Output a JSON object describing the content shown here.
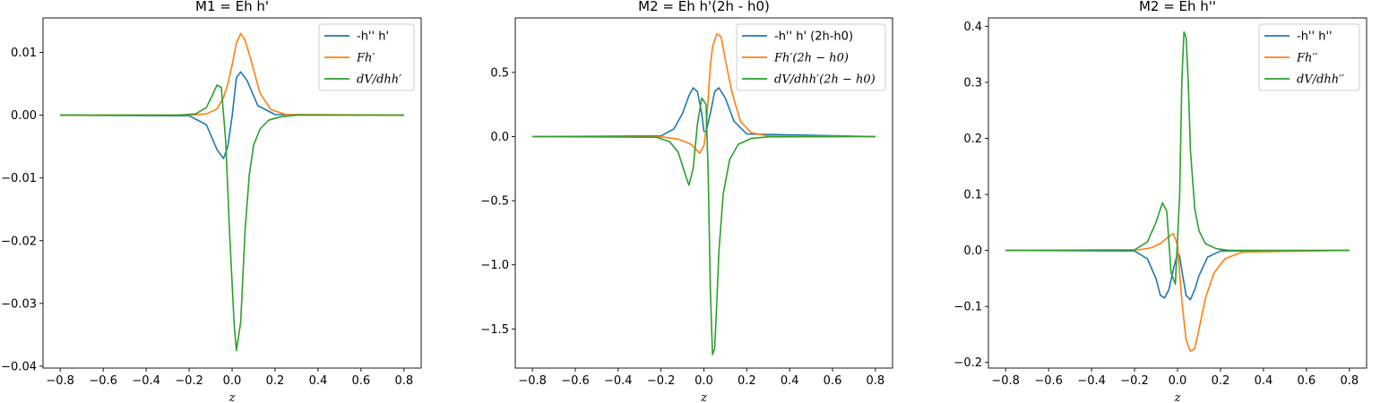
{
  "chart_data": [
    {
      "type": "line",
      "title": "M1 = Eh h'",
      "xlabel": "z",
      "ylabel": "",
      "xlim": [
        -0.88,
        0.88
      ],
      "ylim": [
        -0.0403,
        0.0155
      ],
      "xticks": [
        -0.8,
        -0.6,
        -0.4,
        -0.2,
        0.0,
        0.2,
        0.4,
        0.6,
        0.8
      ],
      "xtick_labels": [
        "−0.8",
        "−0.6",
        "−0.4",
        "−0.2",
        "0.0",
        "0.2",
        "0.4",
        "0.6",
        "0.8"
      ],
      "yticks": [
        0.01,
        0.0,
        -0.01,
        -0.02,
        -0.03,
        -0.04
      ],
      "ytick_labels": [
        "0.01",
        "0.00",
        "−0.01",
        "−0.02",
        "−0.03",
        "−0.04"
      ],
      "legend_position": "upper-right",
      "series": [
        {
          "name": "-h'' h'",
          "color": "#1f77b4",
          "x": [
            -0.8,
            -0.2,
            -0.12,
            -0.07,
            -0.04,
            -0.02,
            0.0,
            0.02,
            0.04,
            0.07,
            0.12,
            0.2,
            0.8
          ],
          "y": [
            0,
            -0.0001,
            -0.0015,
            -0.0055,
            -0.0069,
            -0.005,
            -0.0002,
            0.006,
            0.0069,
            0.0055,
            0.0015,
            0.0001,
            0
          ]
        },
        {
          "name": "Fh′",
          "color": "#ff7f0e",
          "x": [
            -0.8,
            -0.2,
            -0.12,
            -0.07,
            -0.04,
            -0.02,
            0.0,
            0.02,
            0.04,
            0.06,
            0.09,
            0.13,
            0.18,
            0.25,
            0.8
          ],
          "y": [
            0,
            0,
            0.0002,
            0.001,
            0.0028,
            0.005,
            0.008,
            0.0115,
            0.013,
            0.012,
            0.0085,
            0.0035,
            0.0009,
            0.0001,
            0
          ]
        },
        {
          "name": "dV/dhh′",
          "color": "#2ca02c",
          "x": [
            -0.8,
            -0.25,
            -0.17,
            -0.12,
            -0.09,
            -0.07,
            -0.05,
            -0.03,
            -0.01,
            0.01,
            0.02,
            0.04,
            0.06,
            0.08,
            0.1,
            0.13,
            0.17,
            0.22,
            0.3,
            0.8
          ],
          "y": [
            0,
            0,
            0.0002,
            0.0012,
            0.0033,
            0.0048,
            0.0044,
            -0.004,
            -0.02,
            -0.0335,
            -0.0375,
            -0.033,
            -0.0185,
            -0.0095,
            -0.0048,
            -0.0022,
            -0.0008,
            -0.0003,
            0,
            0
          ]
        }
      ]
    },
    {
      "type": "line",
      "title": "M2 = Eh h'(2h - h0)",
      "xlabel": "z",
      "ylabel": "",
      "xlim": [
        -0.88,
        0.88
      ],
      "ylim": [
        -1.805,
        0.925
      ],
      "xticks": [
        -0.8,
        -0.6,
        -0.4,
        -0.2,
        0.0,
        0.2,
        0.4,
        0.6,
        0.8
      ],
      "xtick_labels": [
        "−0.8",
        "−0.6",
        "−0.4",
        "−0.2",
        "0.0",
        "0.2",
        "0.4",
        "0.6",
        "0.8"
      ],
      "yticks": [
        0.5,
        0.0,
        -0.5,
        -1.0,
        -1.5
      ],
      "ytick_labels": [
        "0.5",
        "0.0",
        "−0.5",
        "−1.0",
        "−1.5"
      ],
      "legend_position": "upper-right",
      "series": [
        {
          "name": "-h'' h' (2h-h0)",
          "color": "#1f77b4",
          "x": [
            -0.8,
            -0.2,
            -0.14,
            -0.1,
            -0.07,
            -0.05,
            -0.03,
            -0.01,
            0.0,
            0.01,
            0.03,
            0.05,
            0.07,
            0.1,
            0.14,
            0.2,
            0.8
          ],
          "y": [
            0,
            0.005,
            0.06,
            0.18,
            0.32,
            0.38,
            0.35,
            0.18,
            0.04,
            0.04,
            0.18,
            0.35,
            0.38,
            0.3,
            0.12,
            0.02,
            0
          ]
        },
        {
          "name": "Fh′(2h − h0)",
          "color": "#ff7f0e",
          "x": [
            -0.8,
            -0.2,
            -0.12,
            -0.06,
            -0.02,
            0.0,
            0.01,
            0.02,
            0.03,
            0.04,
            0.06,
            0.08,
            0.1,
            0.13,
            0.17,
            0.22,
            0.3,
            0.8
          ],
          "y": [
            0,
            -0.002,
            -0.02,
            -0.06,
            -0.13,
            -0.07,
            0.05,
            0.3,
            0.55,
            0.7,
            0.8,
            0.78,
            0.6,
            0.35,
            0.12,
            0.03,
            0.005,
            0
          ]
        },
        {
          "name": "dV/dhh′(2h − h0)",
          "color": "#2ca02c",
          "x": [
            -0.8,
            -0.22,
            -0.16,
            -0.12,
            -0.09,
            -0.07,
            -0.05,
            -0.03,
            -0.01,
            0.01,
            0.02,
            0.03,
            0.04,
            0.05,
            0.06,
            0.07,
            0.09,
            0.12,
            0.16,
            0.22,
            0.3,
            0.8
          ],
          "y": [
            0,
            -0.005,
            -0.04,
            -0.12,
            -0.28,
            -0.38,
            -0.25,
            0.1,
            0.3,
            0.25,
            -0.3,
            -1.2,
            -1.7,
            -1.65,
            -1.3,
            -0.9,
            -0.45,
            -0.18,
            -0.06,
            -0.015,
            -0.002,
            0
          ]
        }
      ]
    },
    {
      "type": "line",
      "title": "M2 = Eh h''",
      "xlabel": "z",
      "ylabel": "",
      "xlim": [
        -0.88,
        0.88
      ],
      "ylim": [
        -0.21,
        0.415
      ],
      "xticks": [
        -0.8,
        -0.6,
        -0.4,
        -0.2,
        0.0,
        0.2,
        0.4,
        0.6,
        0.8
      ],
      "xtick_labels": [
        "−0.8",
        "−0.6",
        "−0.4",
        "−0.2",
        "0.0",
        "0.2",
        "0.4",
        "0.6",
        "0.8"
      ],
      "yticks": [
        0.4,
        0.3,
        0.2,
        0.1,
        0.0,
        -0.1,
        -0.2
      ],
      "ytick_labels": [
        "0.4",
        "0.3",
        "0.2",
        "0.1",
        "0.0",
        "−0.1",
        "−0.2"
      ],
      "legend_position": "upper-right",
      "series": [
        {
          "name": "-h'' h''",
          "color": "#1f77b4",
          "x": [
            -0.8,
            -0.2,
            -0.14,
            -0.1,
            -0.08,
            -0.06,
            -0.04,
            -0.02,
            0.0,
            0.01,
            0.02,
            0.04,
            0.06,
            0.08,
            0.1,
            0.14,
            0.2,
            0.8
          ],
          "y": [
            0,
            -0.001,
            -0.015,
            -0.05,
            -0.08,
            -0.085,
            -0.07,
            -0.035,
            -0.005,
            -0.01,
            -0.035,
            -0.08,
            -0.088,
            -0.07,
            -0.045,
            -0.012,
            -0.001,
            0
          ]
        },
        {
          "name": "Fh′′",
          "color": "#ff7f0e",
          "x": [
            -0.8,
            -0.18,
            -0.12,
            -0.08,
            -0.04,
            -0.02,
            0.0,
            0.02,
            0.04,
            0.06,
            0.08,
            0.1,
            0.13,
            0.17,
            0.22,
            0.3,
            0.8
          ],
          "y": [
            0,
            0.001,
            0.005,
            0.012,
            0.025,
            0.03,
            0.01,
            -0.09,
            -0.16,
            -0.18,
            -0.175,
            -0.14,
            -0.085,
            -0.04,
            -0.015,
            -0.003,
            0
          ]
        },
        {
          "name": "dV/dhh′′",
          "color": "#2ca02c",
          "x": [
            -0.8,
            -0.2,
            -0.14,
            -0.1,
            -0.07,
            -0.05,
            -0.03,
            -0.01,
            0.01,
            0.02,
            0.03,
            0.04,
            0.05,
            0.06,
            0.08,
            0.1,
            0.13,
            0.18,
            0.24,
            0.8
          ],
          "y": [
            0,
            0.001,
            0.015,
            0.05,
            0.085,
            0.07,
            -0.04,
            -0.06,
            0.1,
            0.3,
            0.39,
            0.38,
            0.3,
            0.18,
            0.075,
            0.035,
            0.012,
            0.003,
            0,
            0
          ]
        }
      ]
    }
  ]
}
